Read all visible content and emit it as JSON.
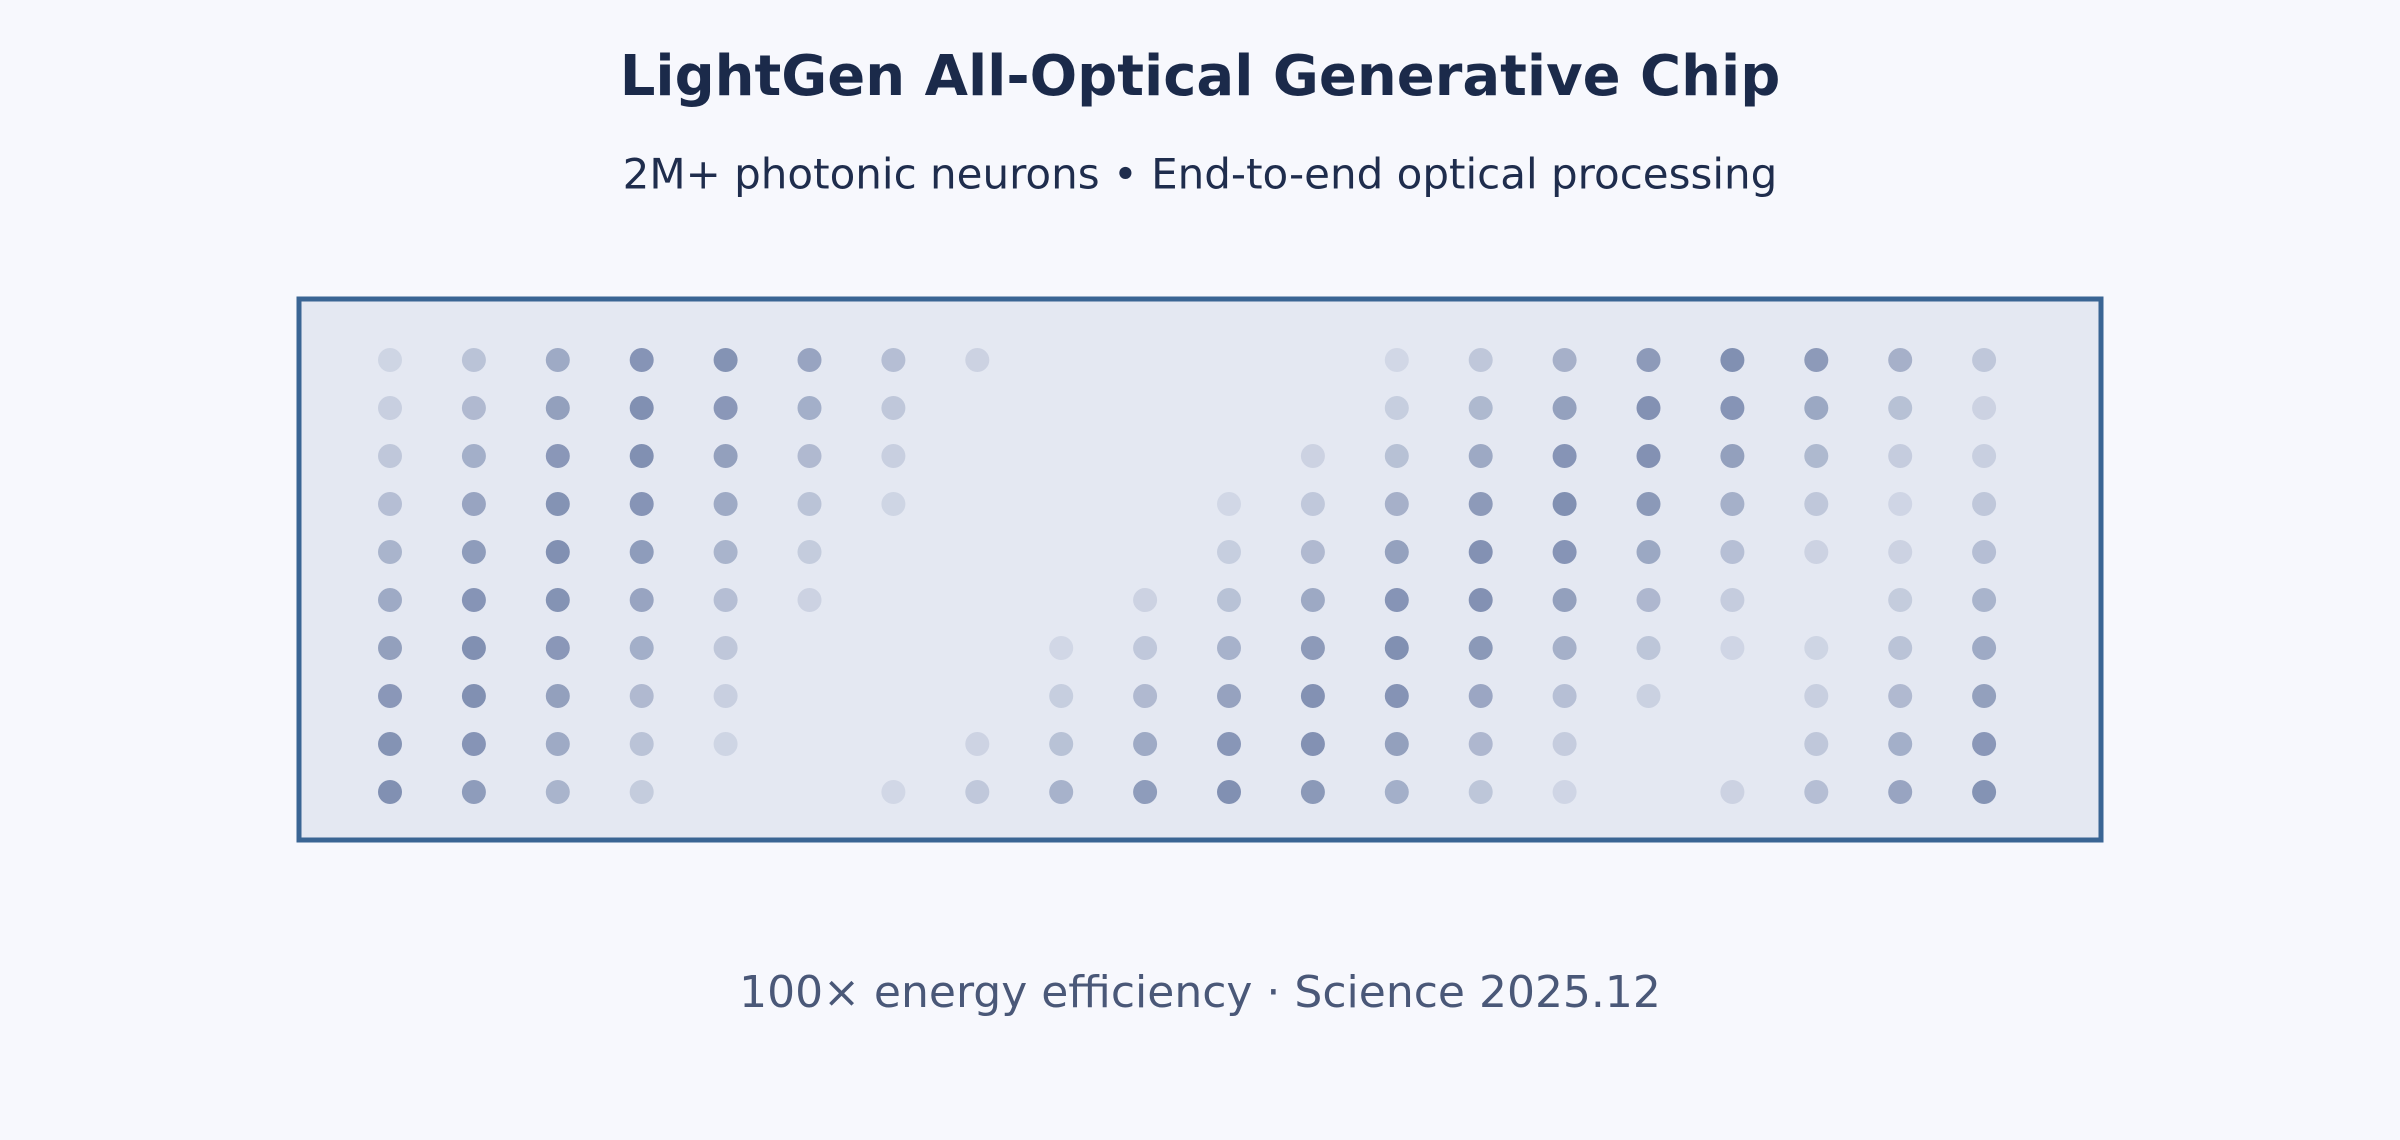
{
  "header": {
    "title": "LightGen All-Optical Generative Chip",
    "subtitle": "2M+ photonic neurons  •  End-to-end optical processing"
  },
  "footer": {
    "text": "100× energy efficiency · Science 2025.12"
  }
}
